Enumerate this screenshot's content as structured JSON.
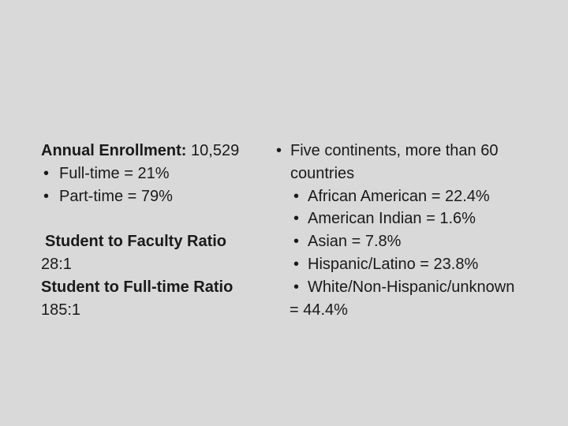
{
  "slide": {
    "background_color": "#d9d9d9",
    "text_color": "#1a1a1a",
    "bullet_char": "•"
  },
  "left_column": {
    "enrollment_label": "Annual Enrollment:",
    "enrollment_value": "10,529",
    "bullets": [
      "Full-time = 21%",
      "Part-time = 79%"
    ],
    "faculty_ratio_heading": "Student to Faculty Ratio",
    "faculty_ratio_value": "28:1",
    "fulltime_ratio_heading": "Student to Full-time Ratio",
    "fulltime_ratio_value": "185:1"
  },
  "right_column": {
    "intro_line_1": "Five continents, more than 60",
    "intro_line_2": "countries",
    "demographics": [
      "African American = 22.4%",
      "American Indian = 1.6%",
      "Asian = 7.8%",
      "Hispanic/Latino = 23.8%",
      "White/Non-Hispanic/unknown"
    ],
    "wrap_value": "= 44.4%"
  }
}
